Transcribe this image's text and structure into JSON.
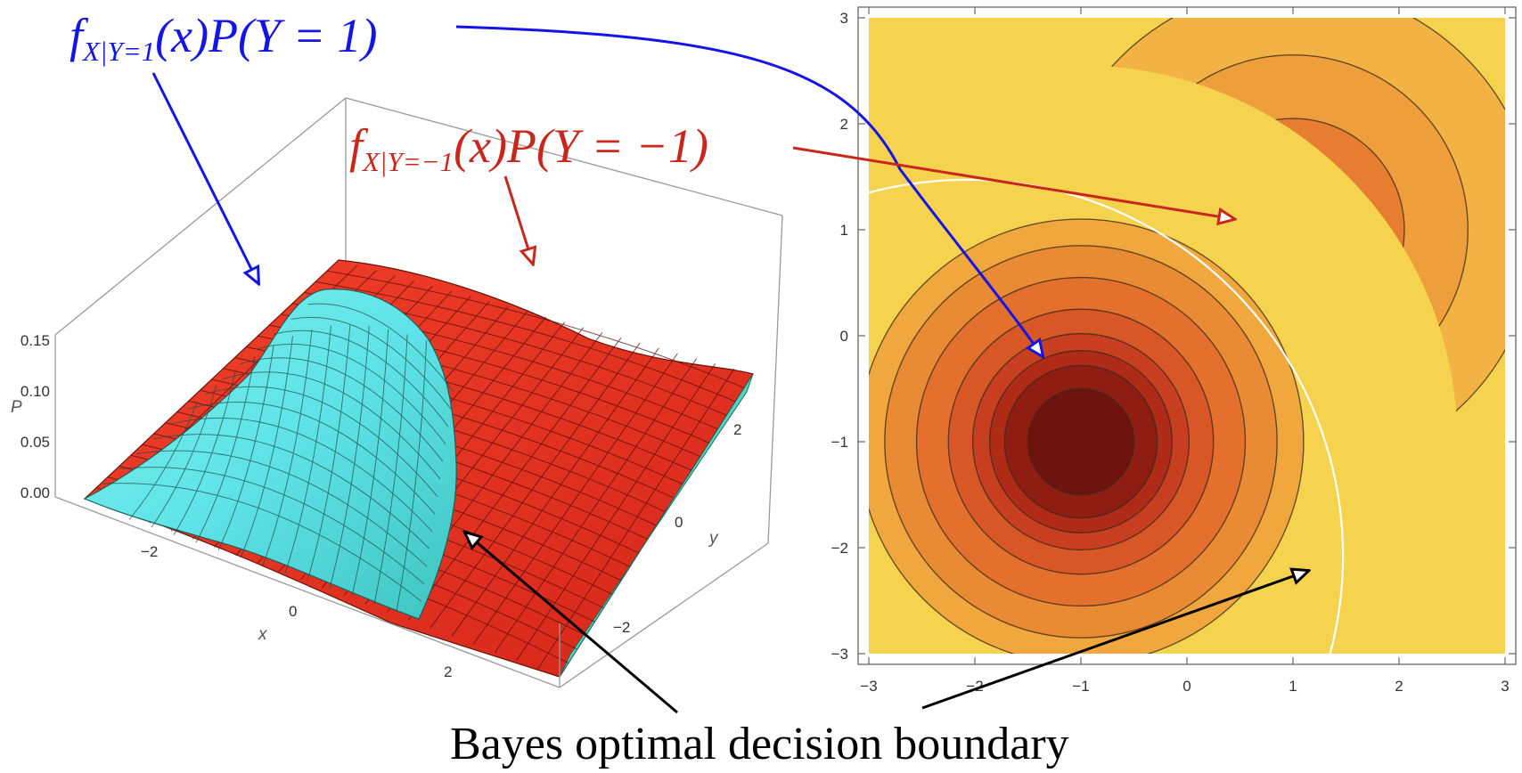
{
  "labels": {
    "blue_f": "f",
    "blue_sub": "X|Y=1",
    "blue_rest": "(x)P(Y = 1)",
    "red_f": "f",
    "red_sub": "X|Y=−1",
    "red_rest": "(x)P(Y = −1)",
    "caption": "Bayes optimal decision boundary"
  },
  "colors": {
    "blue": "#1414e6",
    "red": "#c8281c",
    "cyan_surface": "#5de6e0",
    "red_surface": "#e8301e",
    "contour_background": "#f6d34f"
  },
  "left_plot": {
    "axis_p_name": "P",
    "axis_x_name": "x",
    "axis_y_name": "y",
    "p_ticks": [
      "0.15",
      "0.10",
      "0.05",
      "0.00"
    ],
    "x_ticks": [
      "−2",
      "0",
      "2"
    ],
    "y_ticks": [
      "2",
      "0",
      "−2"
    ]
  },
  "right_plot": {
    "x_ticks": [
      "−3",
      "−2",
      "−1",
      "0",
      "1",
      "2",
      "3"
    ],
    "y_ticks": [
      "3",
      "2",
      "1",
      "0",
      "−1",
      "−2",
      "−3"
    ],
    "center_pos": [
      1,
      1
    ],
    "center_neg": [
      -1,
      -1
    ],
    "neg_fill_levels": [
      "#f0a83e",
      "#e98a34",
      "#e3712d",
      "#d75726",
      "#c83e20",
      "#b02a18",
      "#8e1d12",
      "#6e130d"
    ],
    "pos_fill_levels": [
      "#f2b344",
      "#ee9e3a",
      "#e77d31",
      "#dc5c26"
    ]
  }
}
